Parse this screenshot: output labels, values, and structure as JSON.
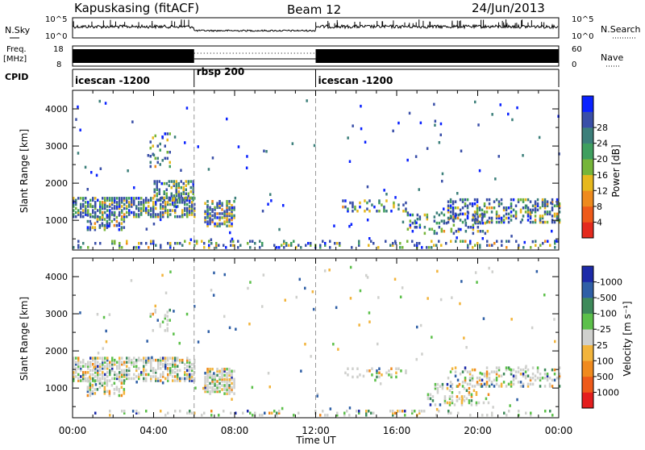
{
  "header": {
    "station": "Kapuskasing (fitACF)",
    "beam": "Beam 12",
    "date": "24/Jun/2013"
  },
  "status_panel": {
    "nsky_label": "N.Sky",
    "nsearch_label": "N.Search",
    "nsky_ticks": [
      "10^5",
      "10^0"
    ],
    "nsearch_ticks": [
      "10^5",
      "10^0"
    ],
    "freq_label": "Freq.",
    "freq_unit": "[MHz]",
    "freq_ticks": [
      "18",
      "8"
    ],
    "nave_label": "Nave",
    "nave_ticks": [
      "60",
      "0"
    ],
    "cpid_label": "CPID",
    "programs": [
      {
        "name": "icescan -1200",
        "start_h": 0,
        "end_h": 6
      },
      {
        "name": "rbsp 200",
        "start_h": 6,
        "end_h": 12
      },
      {
        "name": "icescan -1200",
        "start_h": 12,
        "end_h": 24
      }
    ]
  },
  "chart_data": [
    {
      "type": "heatmap",
      "name": "power",
      "ylabel": "Slant Range [km]",
      "yticks": [
        "1000",
        "2000",
        "3000",
        "4000"
      ],
      "ylim": [
        200,
        4500
      ],
      "xlim": [
        0,
        24
      ],
      "colorbar_label": "Power [dB]",
      "colorbar_ticks": [
        "4",
        "8",
        "12",
        "16",
        "20",
        "24",
        "28"
      ],
      "colorbar_colors": [
        "#0a22ff",
        "#3a4fa8",
        "#3c7f7a",
        "#3f9f5f",
        "#76b53a",
        "#e6b81e",
        "#ee8a1e",
        "#ee5a1a",
        "#e42a1e"
      ],
      "scatter_regions": [
        {
          "t0": 0.0,
          "t1": 6.0,
          "r0": 1050,
          "r1": 1600,
          "weight": 0.9
        },
        {
          "t0": 0.7,
          "t1": 2.6,
          "r0": 700,
          "r1": 1100,
          "weight": 0.6
        },
        {
          "t0": 4.0,
          "t1": 6.0,
          "r0": 1500,
          "r1": 2000,
          "weight": 0.8
        },
        {
          "t0": 3.8,
          "t1": 4.8,
          "r0": 2400,
          "r1": 3300,
          "weight": 0.25
        },
        {
          "t0": 6.5,
          "t1": 8.0,
          "r0": 800,
          "r1": 1500,
          "weight": 0.95
        },
        {
          "t0": 13.3,
          "t1": 16.5,
          "r0": 1200,
          "r1": 1500,
          "weight": 0.4
        },
        {
          "t0": 16.5,
          "t1": 20.5,
          "r0": 600,
          "r1": 1200,
          "weight": 0.35
        },
        {
          "t0": 18.5,
          "t1": 24.0,
          "r0": 900,
          "r1": 1550,
          "weight": 0.55
        },
        {
          "t0": 0.0,
          "t1": 24.0,
          "r0": 220,
          "r1": 420,
          "weight": 0.3
        }
      ]
    },
    {
      "type": "heatmap",
      "name": "velocity",
      "ylabel": "Slant Range [km]",
      "yticks": [
        "1000",
        "2000",
        "3000",
        "4000"
      ],
      "ylim": [
        200,
        4500
      ],
      "xlim": [
        0,
        24
      ],
      "xlabel": "Time UT",
      "xticks": [
        "00:00",
        "04:00",
        "08:00",
        "12:00",
        "16:00",
        "20:00",
        "00:00"
      ],
      "colorbar_label": "Velocity [m s⁻¹]",
      "colorbar_ticks": [
        "1000",
        "500",
        "100",
        "25",
        "-25",
        "-100",
        "-500",
        "-1000"
      ],
      "colorbar_colors": [
        "#1c2aa8",
        "#2f5fa6",
        "#3e8a5a",
        "#5cc04a",
        "#cfd0cd",
        "#f2b43c",
        "#f08a1e",
        "#ee5a1a",
        "#e41e1e"
      ],
      "scatter_regions": [
        {
          "t0": 0.0,
          "t1": 6.0,
          "r0": 1150,
          "r1": 1800,
          "weight": 0.85
        },
        {
          "t0": 0.7,
          "t1": 2.6,
          "r0": 750,
          "r1": 1150,
          "weight": 0.55
        },
        {
          "t0": 3.8,
          "t1": 4.8,
          "r0": 2500,
          "r1": 3200,
          "weight": 0.2
        },
        {
          "t0": 6.5,
          "t1": 8.0,
          "r0": 800,
          "r1": 1500,
          "weight": 0.95
        },
        {
          "t0": 13.3,
          "t1": 16.5,
          "r0": 1250,
          "r1": 1500,
          "weight": 0.35
        },
        {
          "t0": 17.5,
          "t1": 20.5,
          "r0": 500,
          "r1": 1100,
          "weight": 0.4
        },
        {
          "t0": 18.5,
          "t1": 24.0,
          "r0": 1000,
          "r1": 1500,
          "weight": 0.5
        },
        {
          "t0": 0.0,
          "t1": 24.0,
          "r0": 220,
          "r1": 380,
          "weight": 0.25
        }
      ]
    }
  ]
}
